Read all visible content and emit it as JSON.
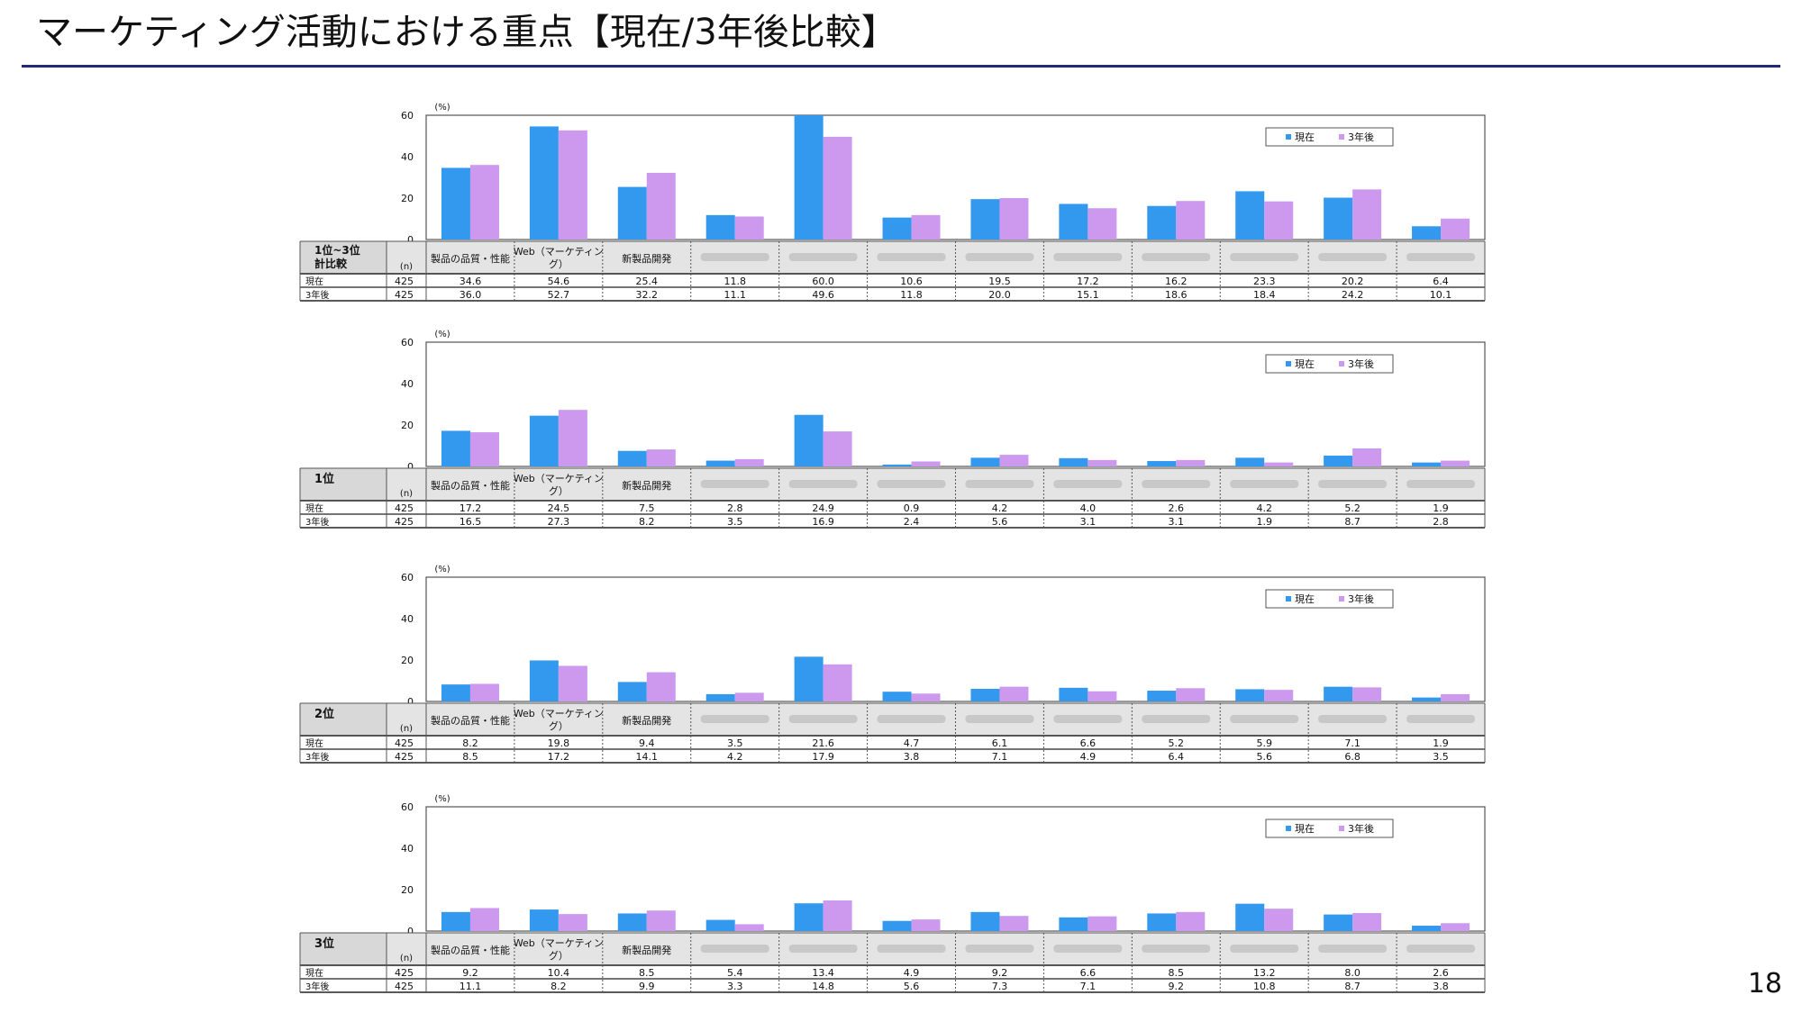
{
  "slide": {
    "title": "マーケティング活動における重点【現在/3年後比較】",
    "page_number": "18"
  },
  "colors": {
    "current": "#3399ee",
    "future": "#cc99ee",
    "border": "#555555"
  },
  "legend_labels": [
    "現在",
    "3年後"
  ],
  "unit_label": "(%)",
  "n_header": "(n)",
  "categories": [
    "製品の品質・性能",
    "Web（マーケティング）",
    "新製品開発",
    "",
    "",
    "",
    "",
    "",
    "",
    "",
    "",
    ""
  ],
  "chart_data": [
    {
      "type": "bar",
      "panel_label": "1位~3位計比較",
      "ylim": [
        0,
        60
      ],
      "yticks": [
        0,
        20,
        40,
        60
      ],
      "series": [
        {
          "name": "現在",
          "n": "425",
          "values": [
            34.6,
            54.6,
            25.4,
            11.8,
            60.0,
            10.6,
            19.5,
            17.2,
            16.2,
            23.3,
            20.2,
            6.4
          ]
        },
        {
          "name": "3年後",
          "n": "425",
          "values": [
            36.0,
            52.7,
            32.2,
            11.1,
            49.6,
            11.8,
            20.0,
            15.1,
            18.6,
            18.4,
            24.2,
            10.1
          ]
        }
      ]
    },
    {
      "type": "bar",
      "panel_label": "1位",
      "ylim": [
        0,
        60
      ],
      "yticks": [
        0,
        20,
        40,
        60
      ],
      "series": [
        {
          "name": "現在",
          "n": "425",
          "values": [
            17.2,
            24.5,
            7.5,
            2.8,
            24.9,
            0.9,
            4.2,
            4.0,
            2.6,
            4.2,
            5.2,
            1.9
          ]
        },
        {
          "name": "3年後",
          "n": "425",
          "values": [
            16.5,
            27.3,
            8.2,
            3.5,
            16.9,
            2.4,
            5.6,
            3.1,
            3.1,
            1.9,
            8.7,
            2.8
          ]
        }
      ]
    },
    {
      "type": "bar",
      "panel_label": "2位",
      "ylim": [
        0,
        60
      ],
      "yticks": [
        0,
        20,
        40,
        60
      ],
      "series": [
        {
          "name": "現在",
          "n": "425",
          "values": [
            8.2,
            19.8,
            9.4,
            3.5,
            21.6,
            4.7,
            6.1,
            6.6,
            5.2,
            5.9,
            7.1,
            1.9
          ]
        },
        {
          "name": "3年後",
          "n": "425",
          "values": [
            8.5,
            17.2,
            14.1,
            4.2,
            17.9,
            3.8,
            7.1,
            4.9,
            6.4,
            5.6,
            6.8,
            3.5
          ]
        }
      ]
    },
    {
      "type": "bar",
      "panel_label": "3位",
      "ylim": [
        0,
        60
      ],
      "yticks": [
        0,
        20,
        40,
        60
      ],
      "series": [
        {
          "name": "現在",
          "n": "425",
          "values": [
            9.2,
            10.4,
            8.5,
            5.4,
            13.4,
            4.9,
            9.2,
            6.6,
            8.5,
            13.2,
            8.0,
            2.6
          ]
        },
        {
          "name": "3年後",
          "n": "425",
          "values": [
            11.1,
            8.2,
            9.9,
            3.3,
            14.8,
            5.6,
            7.3,
            7.1,
            9.2,
            10.8,
            8.7,
            3.8
          ]
        }
      ]
    }
  ]
}
